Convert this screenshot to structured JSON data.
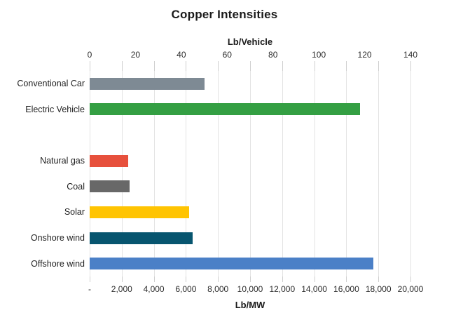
{
  "title": "Copper Intensities",
  "top_axis": {
    "label": "Lb/Vehicle",
    "unit": "Lb/Vehicle",
    "min": 0,
    "max": 140,
    "tick_values": [
      0,
      20,
      40,
      60,
      80,
      100,
      120,
      140
    ],
    "tick_labels": [
      "0",
      "20",
      "40",
      "60",
      "80",
      "100",
      "120",
      "140"
    ]
  },
  "bottom_axis": {
    "label": "Lb/MW",
    "unit": "Lb/MW",
    "min": 0,
    "max": 20000,
    "tick_values": [
      0,
      2000,
      4000,
      6000,
      8000,
      10000,
      12000,
      14000,
      16000,
      18000,
      20000
    ],
    "tick_labels": [
      "-",
      "2,000",
      "4,000",
      "6,000",
      "8,000",
      "10,000",
      "12,000",
      "14,000",
      "16,000",
      "18,000",
      "20,000"
    ]
  },
  "chart_data": {
    "type": "bar",
    "orientation": "horizontal",
    "title": "Copper Intensities",
    "grid": "vertical, every 2,000 Lb/MW",
    "legend": "none",
    "categories": [
      "Conventional Car",
      "Electric Vehicle",
      "",
      "Natural gas",
      "Coal",
      "Solar",
      "Onshore wind",
      "Offshore wind"
    ],
    "series": [
      {
        "name": "Conventional Car",
        "value": 50,
        "unit": "Lb/Vehicle",
        "axis": "top",
        "color": "#7e8a94"
      },
      {
        "name": "Electric Vehicle",
        "value": 118,
        "unit": "Lb/Vehicle",
        "axis": "top",
        "color": "#349f43"
      },
      {
        "name": "",
        "value": null,
        "unit": "",
        "axis": "none",
        "color": ""
      },
      {
        "name": "Natural gas",
        "value": 2400,
        "unit": "Lb/MW",
        "axis": "bottom",
        "color": "#e7503c"
      },
      {
        "name": "Coal",
        "value": 2500,
        "unit": "Lb/MW",
        "axis": "bottom",
        "color": "#686868"
      },
      {
        "name": "Solar",
        "value": 6200,
        "unit": "Lb/MW",
        "axis": "bottom",
        "color": "#ffc402"
      },
      {
        "name": "Onshore wind",
        "value": 6400,
        "unit": "Lb/MW",
        "axis": "bottom",
        "color": "#07556f"
      },
      {
        "name": "Offshore wind",
        "value": 17700,
        "unit": "Lb/MW",
        "axis": "bottom",
        "color": "#4b80c7"
      }
    ],
    "top_axis_range": [
      0,
      140
    ],
    "bottom_axis_range": [
      0,
      20000
    ],
    "colors": {
      "gridline": "#e3e3e3",
      "tick": "#cfcfcf",
      "text": "#1f1f1f"
    }
  }
}
